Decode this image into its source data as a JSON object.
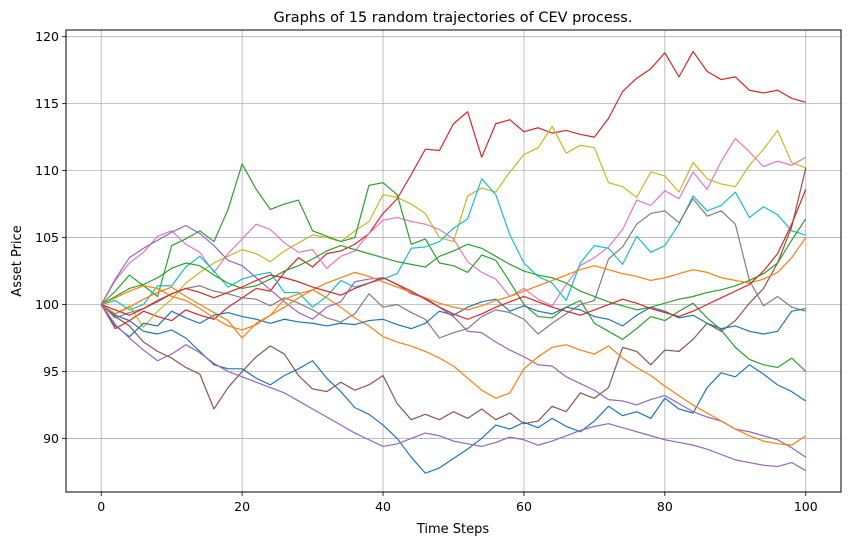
{
  "chart_data": {
    "type": "line",
    "title": "Graphs of 15 random trajectories of CEV process.",
    "xlabel": "Time Steps",
    "ylabel": "Asset Price",
    "xlim": [
      -5,
      105
    ],
    "ylim": [
      86,
      120.5
    ],
    "xticks": [
      0,
      20,
      40,
      60,
      80,
      100
    ],
    "yticks": [
      90,
      95,
      100,
      105,
      110,
      115,
      120
    ],
    "grid": true,
    "legend": "none",
    "x_start": 0,
    "x_step": 2,
    "series": [
      {
        "color": "#d62728",
        "values": [
          100,
          98.2,
          98.8,
          99.5,
          99.1,
          98.8,
          99.6,
          99.2,
          98.9,
          99.8,
          100.5,
          101.2,
          101.0,
          102.4,
          103.5,
          102.8,
          103.8,
          104.0,
          104.5,
          105.3,
          106.8,
          107.9,
          109.7,
          111.6,
          111.5,
          113.5,
          114.4,
          111.0,
          113.5,
          113.8,
          112.9,
          113.2,
          112.8,
          113.0,
          112.7,
          112.5,
          113.9,
          115.9,
          116.9,
          117.6,
          118.8,
          117.0,
          118.9,
          117.4,
          116.8,
          117.0,
          116.0,
          115.8,
          116.0,
          115.4,
          115.1
        ]
      },
      {
        "color": "#bcbd22",
        "values": [
          100,
          99.3,
          99.9,
          98.3,
          99.5,
          100.4,
          101.6,
          102.4,
          103.1,
          103.6,
          104.1,
          103.8,
          103.2,
          104.0,
          104.6,
          105.2,
          105.0,
          104.7,
          105.5,
          106.2,
          108.2,
          108.0,
          107.5,
          106.8,
          105.0,
          104.7,
          108.1,
          108.7,
          108.4,
          109.9,
          111.2,
          111.7,
          113.3,
          111.3,
          111.9,
          111.7,
          109.1,
          108.8,
          108.0,
          109.9,
          109.6,
          108.4,
          110.6,
          109.4,
          109.0,
          108.8,
          110.4,
          111.6,
          113.0,
          110.6,
          110.2
        ]
      },
      {
        "color": "#e377c2",
        "values": [
          100,
          101.8,
          103.1,
          103.9,
          105.1,
          105.5,
          104.5,
          103.9,
          102.4,
          103.8,
          104.9,
          106.0,
          105.6,
          104.6,
          103.9,
          104.1,
          102.7,
          103.6,
          104.0,
          105.3,
          106.3,
          106.5,
          106.2,
          106.0,
          105.6,
          104.9,
          103.2,
          102.4,
          101.9,
          100.6,
          101.2,
          100.4,
          99.9,
          101.5,
          102.9,
          103.5,
          104.3,
          105.6,
          107.8,
          107.4,
          108.5,
          107.9,
          109.9,
          108.6,
          110.7,
          112.4,
          111.4,
          110.3,
          110.7,
          110.4,
          111.0
        ]
      },
      {
        "color": "#2ca02c",
        "values": [
          100,
          101.0,
          102.2,
          101.4,
          100.6,
          104.4,
          104.9,
          105.5,
          104.7,
          107.1,
          110.5,
          108.6,
          107.1,
          107.5,
          107.8,
          105.5,
          105.1,
          104.7,
          105.0,
          108.9,
          109.1,
          108.2,
          104.5,
          104.9,
          103.1,
          102.9,
          102.4,
          103.7,
          103.3,
          101.7,
          100.0,
          99.1,
          99.0,
          99.8,
          100.3,
          98.6,
          98.0,
          97.4,
          98.2,
          99.1,
          98.8,
          99.5,
          100.1,
          99.0,
          98.1,
          96.8,
          95.9,
          95.5,
          95.3,
          96.0,
          95.0
        ]
      },
      {
        "color": "#17becf",
        "values": [
          100,
          100.3,
          99.6,
          100.0,
          101.4,
          101.4,
          102.8,
          103.6,
          102.5,
          101.3,
          101.9,
          102.2,
          102.4,
          100.9,
          100.9,
          99.8,
          100.6,
          101.8,
          101.3,
          101.6,
          101.9,
          102.3,
          104.2,
          104.3,
          104.7,
          105.7,
          106.4,
          109.4,
          108.2,
          105.2,
          103.1,
          102.1,
          101.6,
          100.3,
          103.1,
          104.4,
          104.2,
          103.0,
          105.1,
          103.9,
          104.4,
          106.0,
          108.1,
          107.0,
          107.4,
          108.4,
          106.5,
          107.3,
          106.7,
          105.5,
          105.2
        ]
      },
      {
        "color": "#8c564b",
        "values": [
          100,
          99.1,
          98.4,
          97.2,
          96.5,
          96.0,
          95.3,
          94.8,
          92.2,
          93.8,
          95.0,
          96.1,
          96.9,
          96.3,
          94.7,
          93.7,
          93.5,
          94.2,
          93.6,
          94.0,
          94.7,
          92.6,
          91.4,
          91.8,
          91.4,
          92.0,
          91.5,
          92.2,
          91.4,
          91.9,
          91.1,
          91.3,
          92.4,
          92.0,
          93.4,
          93.0,
          93.8,
          96.8,
          96.5,
          95.5,
          96.6,
          96.5,
          97.4,
          98.6,
          98.0,
          98.8,
          100.1,
          101.2,
          103.1,
          105.8,
          110.2
        ]
      },
      {
        "color": "#7f7f7f",
        "values": [
          100,
          99.0,
          99.4,
          99.7,
          100.2,
          100.8,
          101.2,
          101.4,
          101.0,
          100.8,
          100.5,
          100.4,
          99.9,
          100.5,
          100.1,
          99.6,
          99.0,
          98.7,
          99.3,
          100.8,
          99.8,
          100.0,
          99.4,
          98.9,
          97.5,
          97.9,
          98.2,
          99.1,
          99.6,
          99.4,
          98.9,
          97.8,
          98.6,
          99.3,
          100.0,
          100.3,
          103.4,
          104.3,
          106.0,
          106.8,
          107.0,
          106.1,
          107.9,
          106.6,
          107.0,
          106.0,
          101.8,
          99.9,
          100.6,
          99.8,
          99.5
        ]
      },
      {
        "color": "#1f77b4",
        "values": [
          100,
          99.2,
          98.8,
          98.0,
          97.8,
          98.1,
          97.5,
          96.5,
          95.5,
          95.2,
          95.2,
          94.5,
          94.0,
          94.7,
          95.2,
          95.8,
          94.5,
          93.5,
          92.3,
          91.8,
          91.0,
          90.0,
          88.6,
          87.4,
          87.8,
          88.5,
          89.2,
          90.0,
          91.0,
          90.7,
          91.2,
          90.8,
          91.5,
          90.9,
          90.5,
          91.3,
          92.4,
          91.7,
          92.0,
          91.5,
          93.0,
          92.2,
          91.9,
          93.8,
          94.9,
          94.6,
          95.5,
          94.8,
          94.0,
          93.5,
          92.8
        ]
      },
      {
        "color": "#9467bd",
        "values": [
          100,
          101.9,
          103.5,
          104.2,
          104.8,
          105.4,
          105.9,
          105.3,
          104.4,
          103.3,
          102.9,
          102.0,
          101.1,
          100.2,
          99.4,
          98.9,
          99.8,
          100.2,
          101.7,
          101.9,
          102.0,
          101.5,
          100.8,
          100.5,
          99.8,
          99.1,
          98.0,
          97.9,
          97.2,
          96.6,
          96.1,
          95.5,
          95.4,
          94.6,
          94.1,
          93.6,
          92.9,
          92.8,
          92.5,
          92.9,
          93.2,
          92.6,
          92.0,
          91.6,
          91.3,
          90.7,
          90.5,
          90.2,
          89.9,
          89.3,
          88.6
        ]
      },
      {
        "color": "#ff7f0e",
        "values": [
          100,
          99.3,
          99.8,
          100.4,
          100.9,
          101.3,
          100.6,
          100.0,
          99.4,
          98.8,
          97.5,
          98.6,
          99.2,
          100.4,
          100.8,
          101.1,
          100.5,
          99.8,
          99.0,
          98.4,
          97.6,
          97.2,
          96.9,
          96.5,
          96.0,
          95.4,
          94.5,
          93.6,
          93.0,
          93.4,
          95.2,
          96.1,
          96.8,
          97.0,
          96.6,
          96.3,
          96.9,
          96.0,
          95.3,
          94.7,
          93.9,
          93.2,
          92.5,
          91.9,
          91.3,
          90.7,
          90.2,
          89.8,
          89.6,
          89.5,
          90.2
        ]
      },
      {
        "color": "#1f77b4",
        "values": [
          100,
          98.4,
          97.6,
          98.6,
          98.4,
          99.5,
          99.0,
          98.6,
          99.2,
          99.4,
          99.1,
          98.9,
          98.6,
          98.9,
          98.7,
          98.6,
          98.4,
          98.6,
          98.5,
          98.8,
          98.9,
          98.5,
          98.2,
          98.6,
          99.5,
          99.2,
          99.8,
          100.2,
          100.4,
          99.5,
          99.9,
          99.5,
          99.3,
          99.8,
          99.6,
          99.1,
          98.9,
          98.4,
          99.2,
          99.8,
          99.5,
          99.0,
          99.2,
          98.6,
          98.2,
          98.4,
          98.0,
          97.8,
          98.0,
          99.5,
          99.7
        ]
      },
      {
        "color": "#2ca02c",
        "values": [
          100,
          100.6,
          101.2,
          101.5,
          102.0,
          102.7,
          103.1,
          102.9,
          102.2,
          101.6,
          101.2,
          101.4,
          101.9,
          102.5,
          102.9,
          103.4,
          104.0,
          104.4,
          104.1,
          103.8,
          103.5,
          103.2,
          103.0,
          102.8,
          103.6,
          104.0,
          104.5,
          104.2,
          103.6,
          103.0,
          102.5,
          102.2,
          102.0,
          101.6,
          101.0,
          100.6,
          100.2,
          99.9,
          99.6,
          99.8,
          100.1,
          100.4,
          100.6,
          100.9,
          101.1,
          101.4,
          101.8,
          102.3,
          103.1,
          104.8,
          106.4
        ]
      },
      {
        "color": "#ff7f0e",
        "values": [
          100,
          100.5,
          101.0,
          101.4,
          101.2,
          100.6,
          100.3,
          99.7,
          99.0,
          98.4,
          98.1,
          98.5,
          99.2,
          99.8,
          100.5,
          101.1,
          101.6,
          102.0,
          102.4,
          102.1,
          101.7,
          101.3,
          100.9,
          100.5,
          100.1,
          99.8,
          99.6,
          99.9,
          100.3,
          100.6,
          101.0,
          101.4,
          101.8,
          102.2,
          102.6,
          102.9,
          102.6,
          102.3,
          102.1,
          101.8,
          102.0,
          102.3,
          102.6,
          102.4,
          102.0,
          101.8,
          101.6,
          101.9,
          102.4,
          103.5,
          105.0
        ]
      },
      {
        "color": "#d62728",
        "values": [
          100,
          99.6,
          99.2,
          99.7,
          100.3,
          100.8,
          101.2,
          100.9,
          100.5,
          100.9,
          101.3,
          101.8,
          102.2,
          102.0,
          101.7,
          101.3,
          101.0,
          100.7,
          101.2,
          101.6,
          102.0,
          101.5,
          101.0,
          100.4,
          99.8,
          99.3,
          98.9,
          99.3,
          99.8,
          100.2,
          100.6,
          100.2,
          99.8,
          99.5,
          99.2,
          99.6,
          100.0,
          100.4,
          100.1,
          99.7,
          99.4,
          99.1,
          99.5,
          100.0,
          100.5,
          101.0,
          101.5,
          102.5,
          103.8,
          106.0,
          108.6
        ]
      },
      {
        "color": "#9467bd",
        "values": [
          100,
          98.5,
          97.5,
          96.6,
          95.8,
          96.3,
          97.0,
          96.4,
          95.6,
          95.0,
          94.6,
          94.2,
          93.8,
          93.4,
          92.8,
          92.2,
          91.6,
          91.0,
          90.4,
          89.9,
          89.4,
          89.6,
          90.0,
          90.4,
          90.2,
          89.8,
          89.6,
          89.4,
          89.7,
          90.1,
          89.9,
          89.5,
          89.8,
          90.2,
          90.6,
          90.9,
          91.1,
          90.8,
          90.5,
          90.2,
          89.9,
          89.7,
          89.5,
          89.2,
          88.8,
          88.4,
          88.2,
          88.0,
          87.9,
          88.2,
          87.6
        ]
      }
    ]
  }
}
